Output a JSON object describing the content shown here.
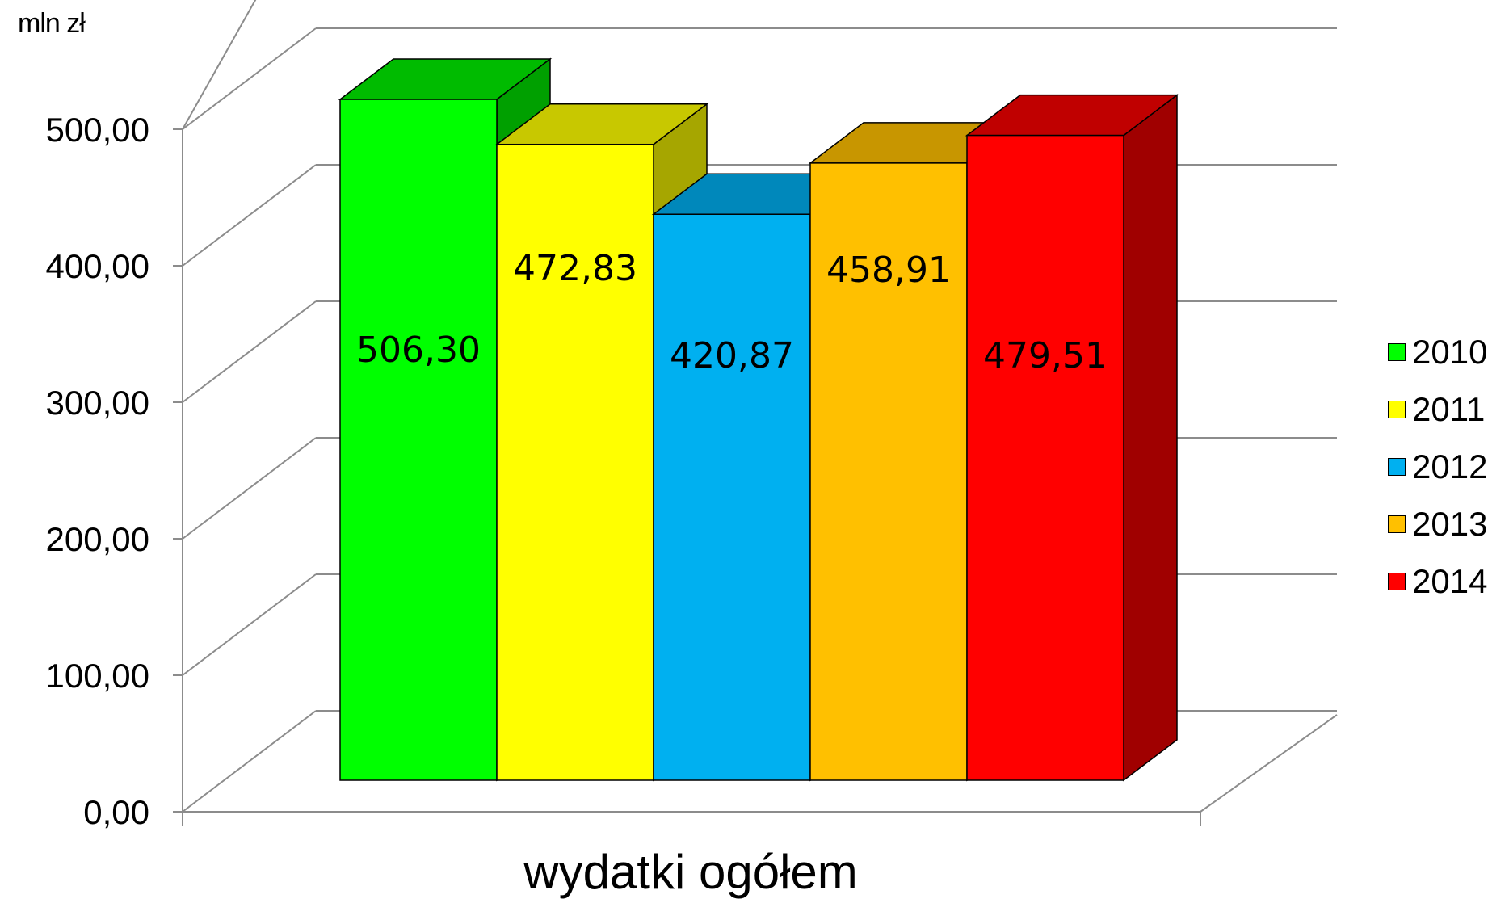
{
  "unit_label": "mln zł",
  "chart_data": {
    "type": "bar",
    "title": "",
    "xlabel": "wydatki ogółem",
    "ylabel": "mln zł",
    "ylim": [
      0,
      500
    ],
    "y_ticks": [
      "0,00",
      "100,00",
      "200,00",
      "300,00",
      "400,00",
      "500,00"
    ],
    "categories": [
      "wydatki ogółem"
    ],
    "series": [
      {
        "name": "2010",
        "values": [
          506.3
        ],
        "label": "506,30",
        "color": "#00ff00",
        "top_color": "#00bb00",
        "side_color": "#00a000"
      },
      {
        "name": "2011",
        "values": [
          472.83
        ],
        "label": "472,83",
        "color": "#ffff00",
        "top_color": "#c8c800",
        "side_color": "#a6a600"
      },
      {
        "name": "2012",
        "values": [
          420.87
        ],
        "label": "420,87",
        "color": "#00b0f0",
        "top_color": "#0088bb",
        "side_color": "#0077a6"
      },
      {
        "name": "2013",
        "values": [
          458.91
        ],
        "label": "458,91",
        "color": "#ffc000",
        "top_color": "#c89600",
        "side_color": "#a67c00"
      },
      {
        "name": "2014",
        "values": [
          479.51
        ],
        "label": "479,51",
        "color": "#ff0000",
        "top_color": "#c00000",
        "side_color": "#a00000"
      }
    ],
    "grid": true,
    "legend_position": "right",
    "style": "3d-clustered-column"
  }
}
